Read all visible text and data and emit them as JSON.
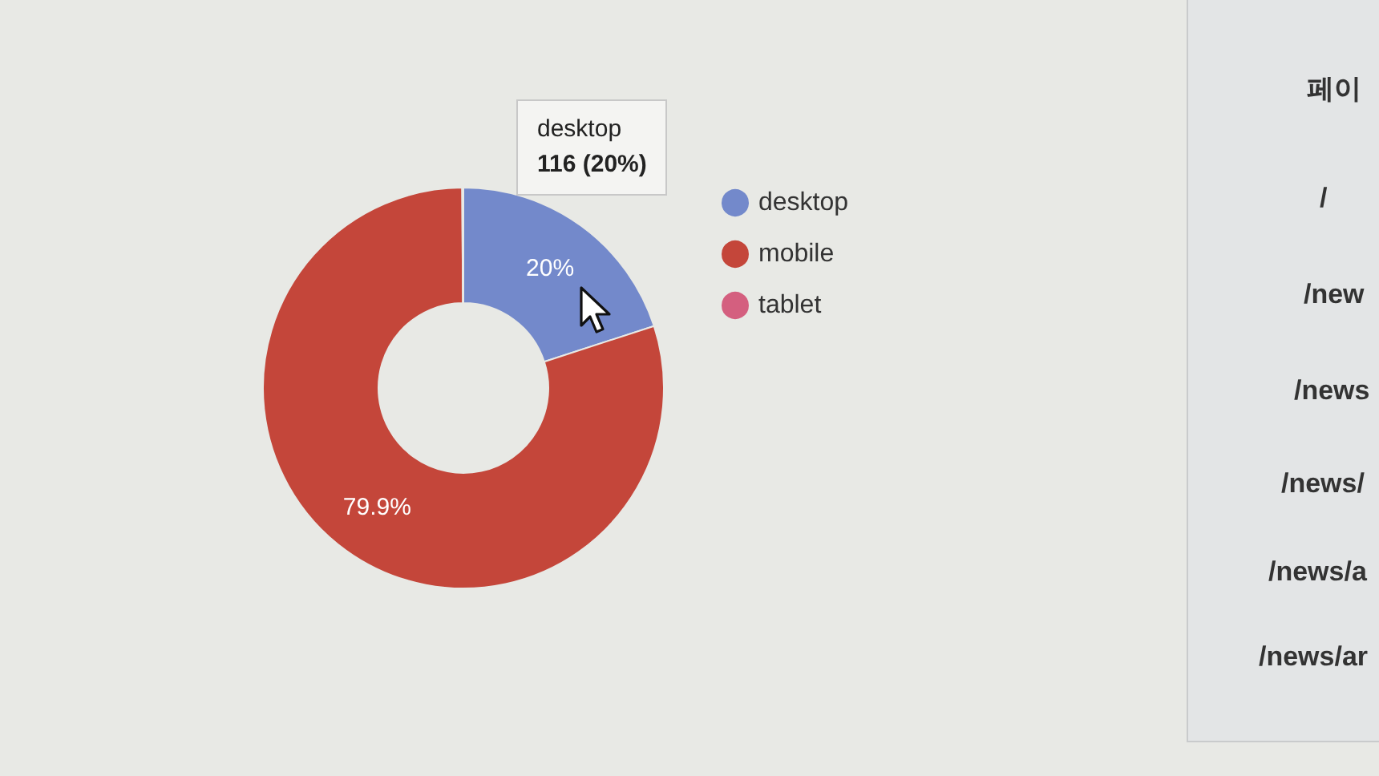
{
  "chart_data": {
    "type": "donut",
    "categories": [
      "desktop",
      "mobile",
      "tablet"
    ],
    "values": [
      20,
      79.9,
      0.1
    ],
    "colors": [
      "#7389cb",
      "#c4463a",
      "#d45f7f"
    ],
    "value_labels": [
      "20%",
      "79.9%",
      null
    ],
    "legend": "right",
    "annotations": [
      "desktop\n116 (20%)",
      "페이",
      "/",
      "/new",
      "/news",
      "/news/",
      "/news/a",
      "/news/ar"
    ]
  }
}
